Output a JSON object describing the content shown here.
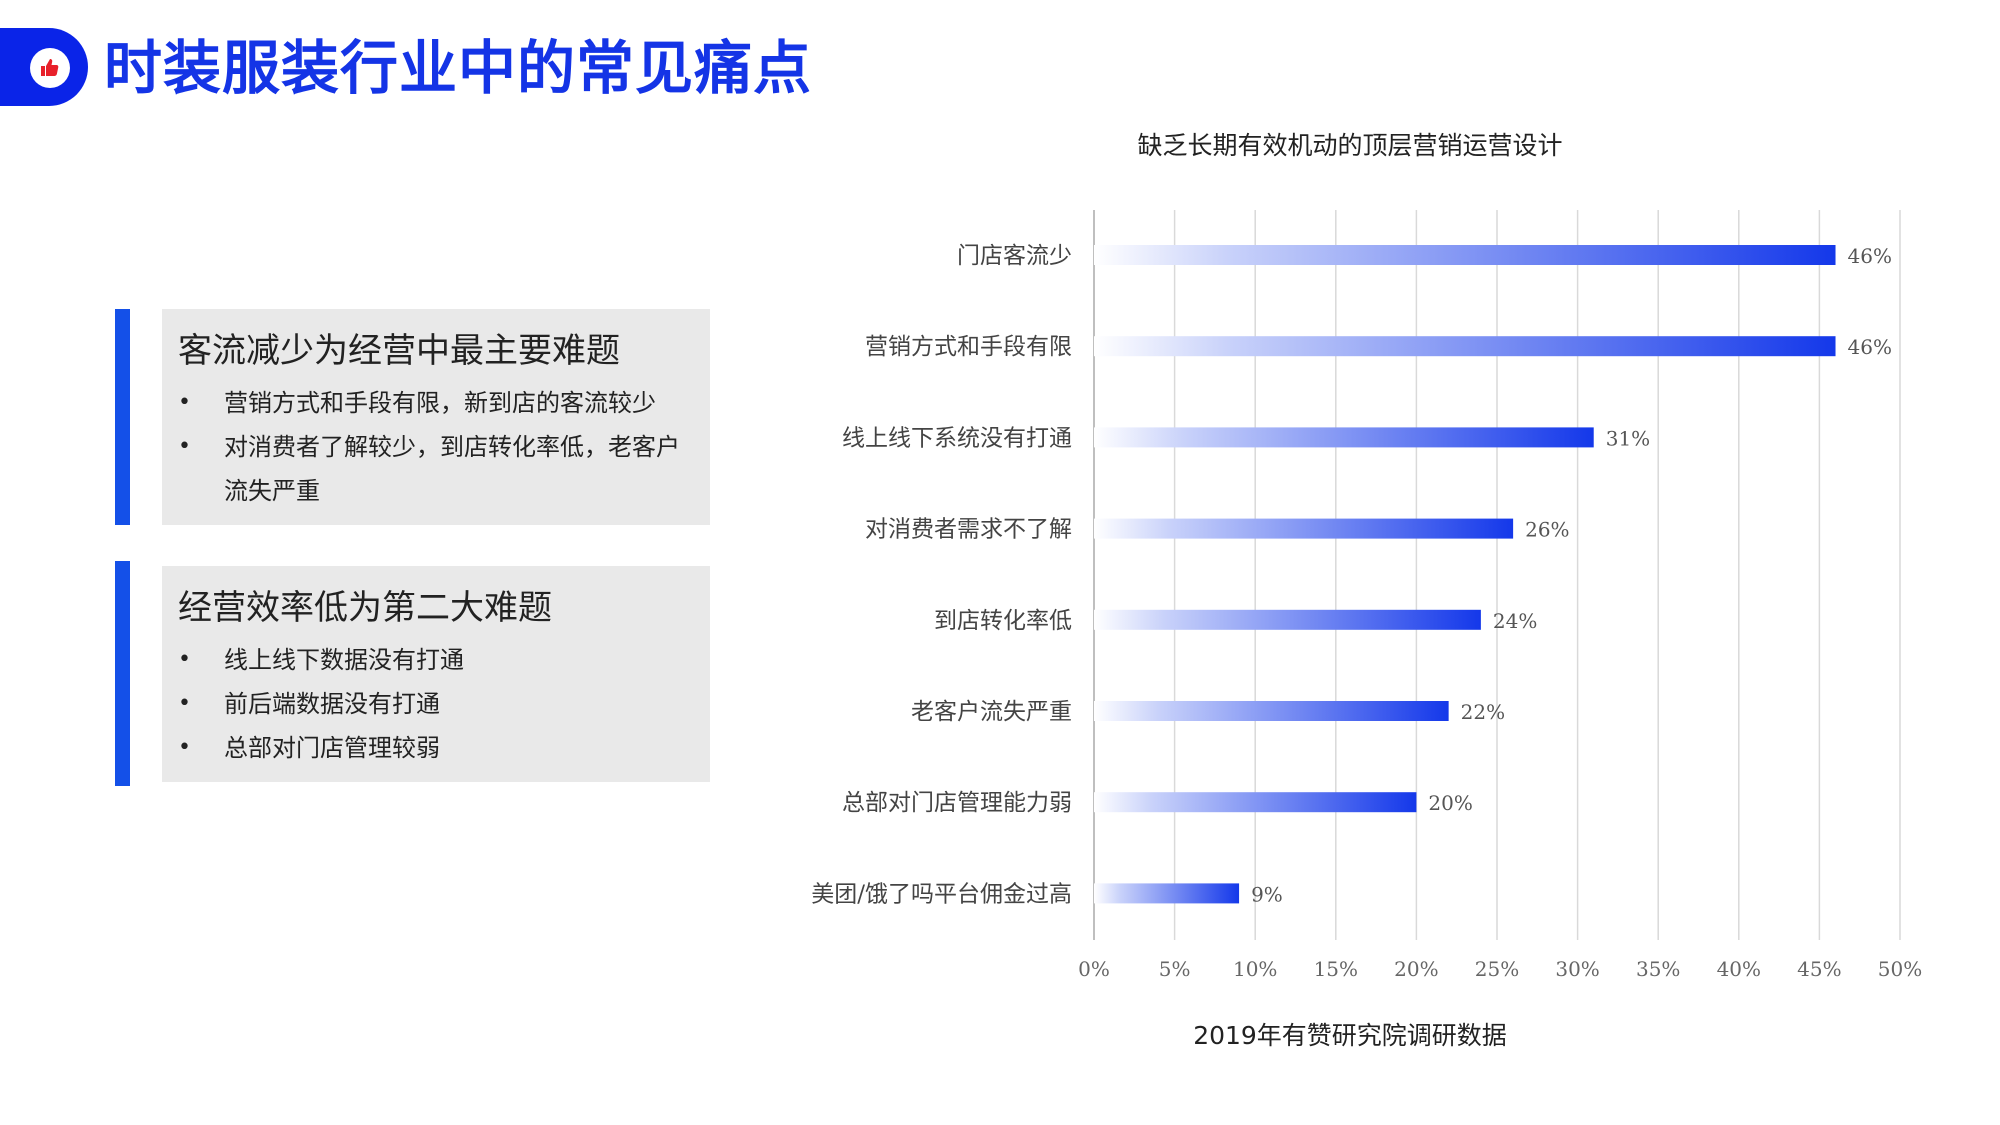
{
  "header": {
    "title": "时装服装行业中的常见痛点",
    "icon": "thumbs-up-icon",
    "accent_color": "#0a24e8"
  },
  "cards": [
    {
      "title": "客流减少为经营中最主要难题",
      "items": [
        "营销方式和手段有限，新到店的客流较少",
        "对消费者了解较少，到店转化率低，老客户流失严重"
      ]
    },
    {
      "title": "经营效率低为第二大难题",
      "items": [
        "线上线下数据没有打通",
        "前后端数据没有打通",
        "总部对门店管理较弱"
      ]
    }
  ],
  "bullet_symbol": "•",
  "chart_data": {
    "type": "bar",
    "orientation": "horizontal",
    "title": "缺乏长期有效机动的顶层营销运营设计",
    "source": "2019年有赞研究院调研数据",
    "categories": [
      "门店客流少",
      "营销方式和手段有限",
      "线上线下系统没有打通",
      "对消费者需求不了解",
      "到店转化率低",
      "老客户流失严重",
      "总部对门店管理能力弱",
      "美团/饿了吗平台佣金过高"
    ],
    "values": [
      46,
      46,
      31,
      26,
      24,
      22,
      20,
      9
    ],
    "value_labels": [
      "46%",
      "46%",
      "31%",
      "26%",
      "24%",
      "22%",
      "20%",
      "9%"
    ],
    "xlim": [
      0,
      50
    ],
    "xticks": [
      0,
      5,
      10,
      15,
      20,
      25,
      30,
      35,
      40,
      45,
      50
    ],
    "xtick_labels": [
      "0%",
      "5%",
      "10%",
      "15%",
      "20%",
      "25%",
      "30%",
      "35%",
      "40%",
      "45%",
      "50%"
    ],
    "grid": true,
    "bar_color_start": "#ffffff",
    "bar_color_end": "#1438ea",
    "grid_color": "#d9d9d9"
  }
}
